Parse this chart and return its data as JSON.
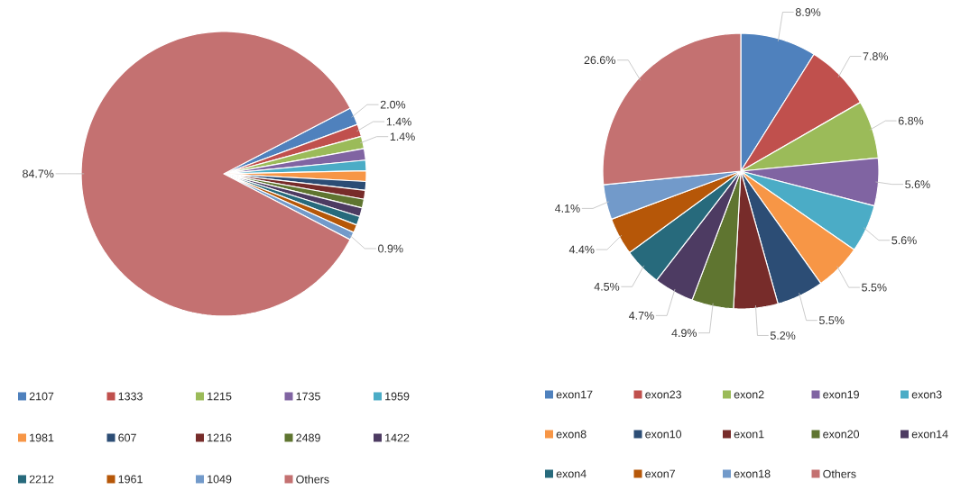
{
  "chart_data": [
    {
      "type": "pie",
      "categories": [
        "2107",
        "1333",
        "1215",
        "1735",
        "1959",
        "1981",
        "607",
        "1216",
        "2489",
        "1422",
        "2212",
        "1961",
        "1049",
        "Others"
      ],
      "values": [
        2.0,
        1.4,
        1.4,
        1.3,
        1.2,
        1.2,
        1.0,
        1.0,
        1.0,
        1.0,
        1.0,
        0.9,
        0.9,
        84.7
      ],
      "value_labels": [
        "2.0%",
        "1.4%",
        "1.4%",
        null,
        null,
        null,
        null,
        null,
        null,
        null,
        null,
        null,
        "0.9%",
        "84.7%"
      ],
      "colors": [
        "#4f81bd",
        "#c0504d",
        "#9bbb59",
        "#8064a2",
        "#4bacc6",
        "#f79646",
        "#2c4d75",
        "#772c2a",
        "#5f7530",
        "#4d3b62",
        "#276a7c",
        "#b65708",
        "#729aca",
        "#c47171"
      ],
      "legend": "bottom"
    },
    {
      "type": "pie",
      "categories": [
        "exon17",
        "exon23",
        "exon2",
        "exon19",
        "exon3",
        "exon8",
        "exon10",
        "exon1",
        "exon20",
        "exon14",
        "exon4",
        "exon7",
        "exon18",
        "Others"
      ],
      "values": [
        8.9,
        7.8,
        6.8,
        5.6,
        5.6,
        5.5,
        5.5,
        5.2,
        4.9,
        4.7,
        4.5,
        4.4,
        4.1,
        26.6
      ],
      "value_labels": [
        "8.9%",
        "7.8%",
        "6.8%",
        "5.6%",
        "5.6%",
        "5.5%",
        "5.5%",
        "5.2%",
        "4.9%",
        "4.7%",
        "4.5%",
        "4.4%",
        "4.1%",
        "26.6%"
      ],
      "colors": [
        "#4f81bd",
        "#c0504d",
        "#9bbb59",
        "#8064a2",
        "#4bacc6",
        "#f79646",
        "#2c4d75",
        "#772c2a",
        "#5f7530",
        "#4d3b62",
        "#276a7c",
        "#b65708",
        "#729aca",
        "#c47171"
      ],
      "legend": "bottom"
    }
  ]
}
